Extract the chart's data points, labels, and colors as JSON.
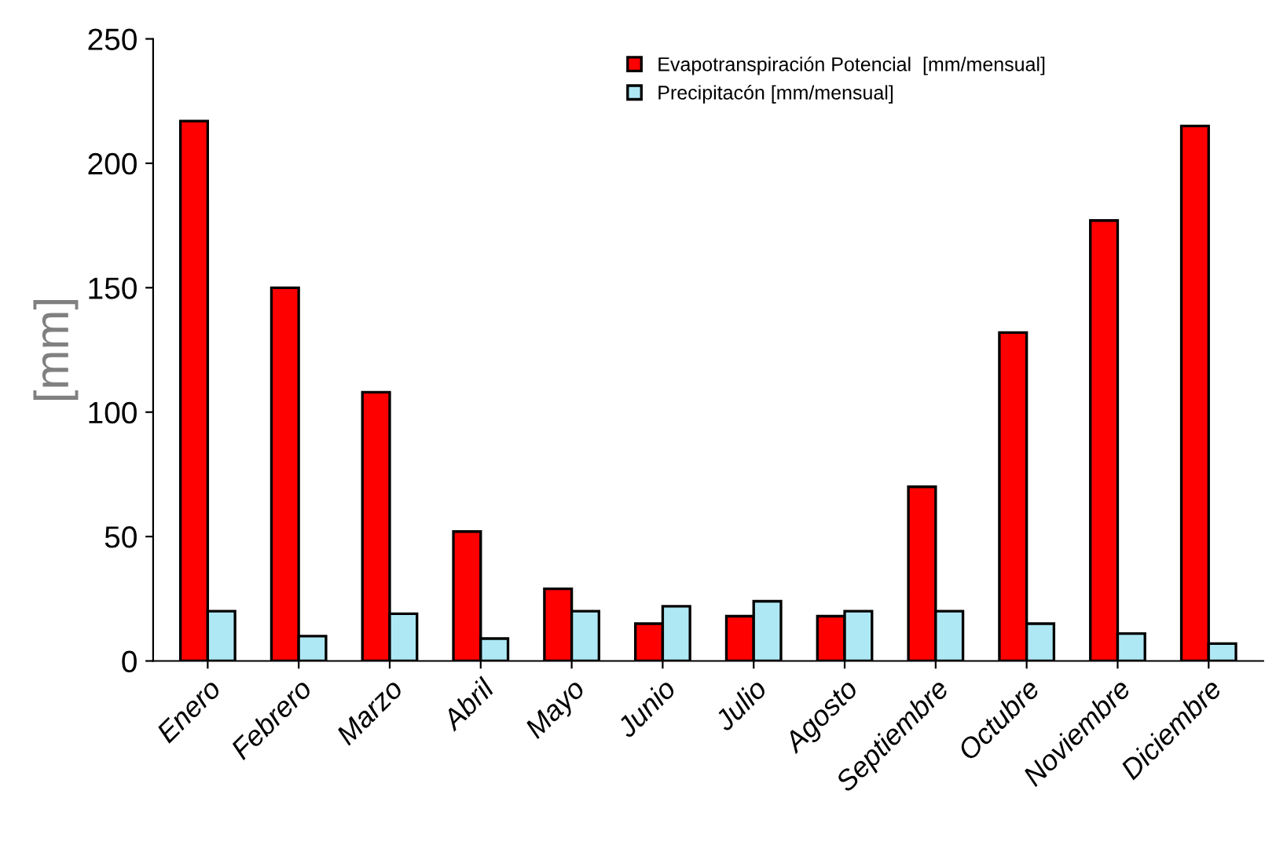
{
  "chart_data": {
    "type": "bar",
    "ylabel": "[mm]",
    "categories": [
      "Enero",
      "Febrero",
      "Marzo",
      "Abril",
      "Mayo",
      "Junio",
      "Julio",
      "Agosto",
      "Septiembre",
      "Octubre",
      "Noviembre",
      "Diciembre"
    ],
    "series": [
      {
        "name": "Evapotranspiración Potencial  [mm/mensual]",
        "color": "#ff0000",
        "values": [
          217,
          150,
          108,
          52,
          29,
          15,
          18,
          18,
          70,
          132,
          177,
          215
        ]
      },
      {
        "name": "Precipitacón [mm/mensual]",
        "color": "#aee8f5",
        "values": [
          20,
          10,
          19,
          9,
          20,
          22,
          24,
          20,
          20,
          15,
          11,
          7
        ]
      }
    ],
    "ylim": [
      0,
      250
    ],
    "yticks": [
      0,
      50,
      100,
      150,
      200,
      250
    ],
    "grid": false,
    "legend": "top right"
  }
}
